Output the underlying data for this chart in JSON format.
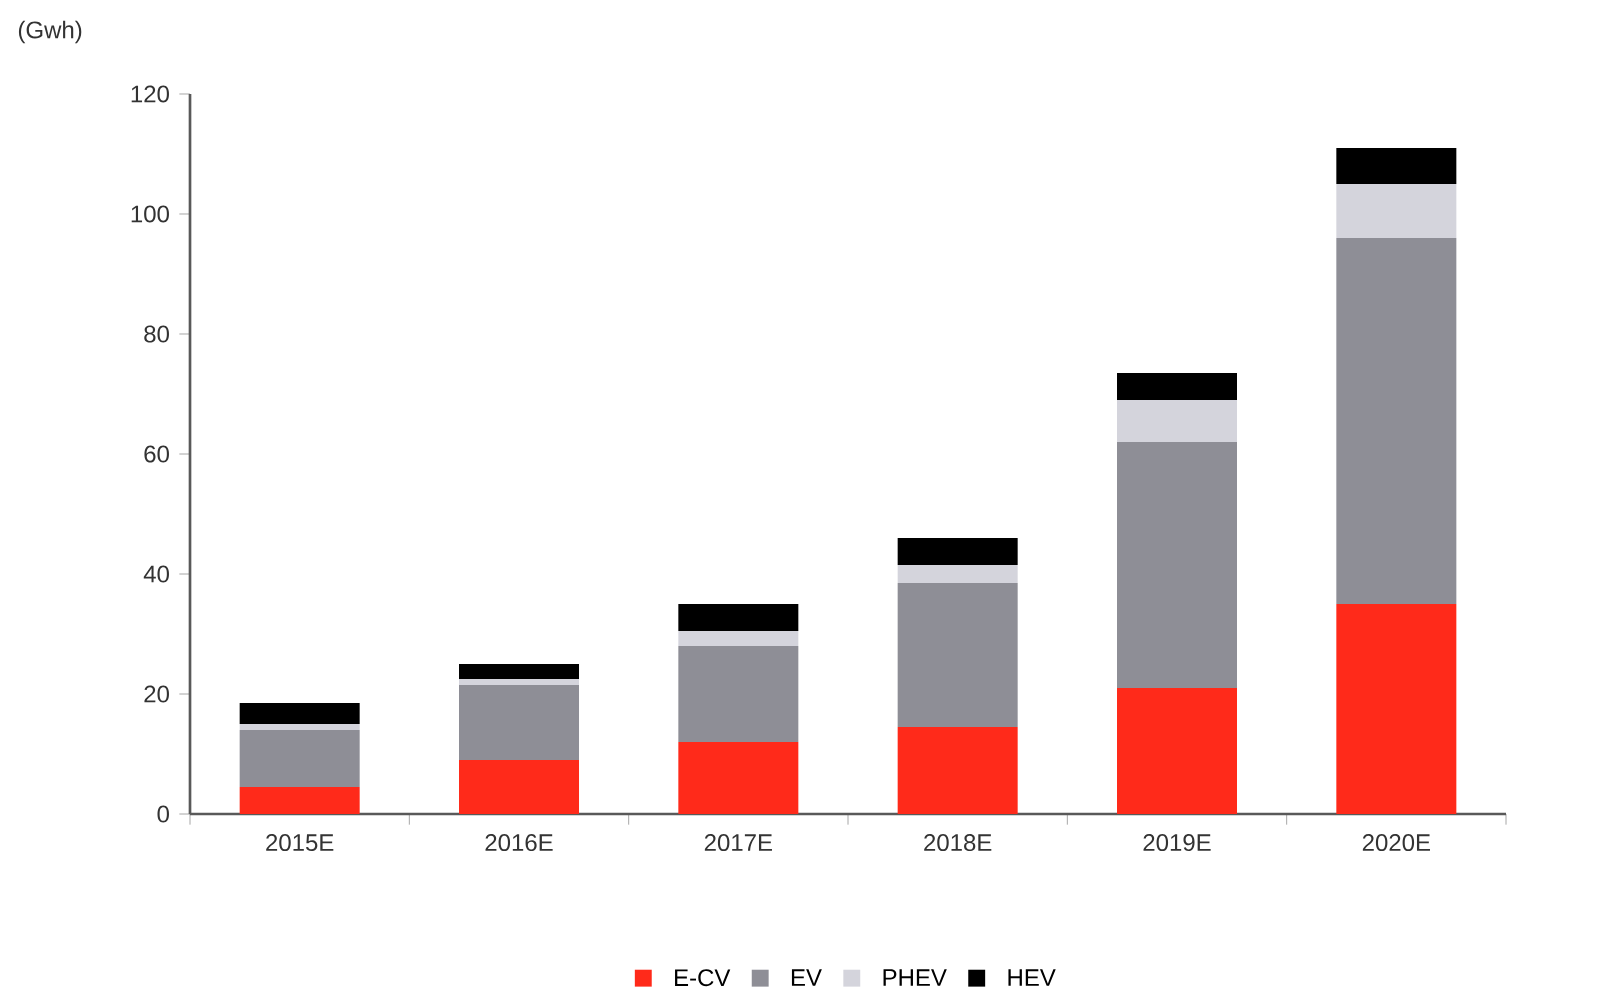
{
  "chart_data": {
    "type": "bar",
    "stacked": true,
    "ylabel": "(Gwh)",
    "categories": [
      "2015E",
      "2016E",
      "2017E",
      "2018E",
      "2019E",
      "2020E"
    ],
    "series": [
      {
        "name": "E-CV",
        "color": "#ff2a1a",
        "values": [
          4.5,
          9,
          12,
          14.5,
          21,
          35
        ]
      },
      {
        "name": "EV",
        "color": "#8e8e96",
        "values": [
          9.5,
          12.5,
          16,
          24,
          41,
          61
        ]
      },
      {
        "name": "PHEV",
        "color": "#d4d4dc",
        "values": [
          1,
          1,
          2.5,
          3,
          7,
          9
        ]
      },
      {
        "name": "HEV",
        "color": "#000000",
        "values": [
          3.5,
          2.5,
          4.5,
          4.5,
          4.5,
          6
        ]
      }
    ],
    "ylim": [
      0,
      120
    ],
    "yticks": [
      0,
      20,
      40,
      60,
      80,
      100,
      120
    ],
    "legend": "bottom"
  }
}
